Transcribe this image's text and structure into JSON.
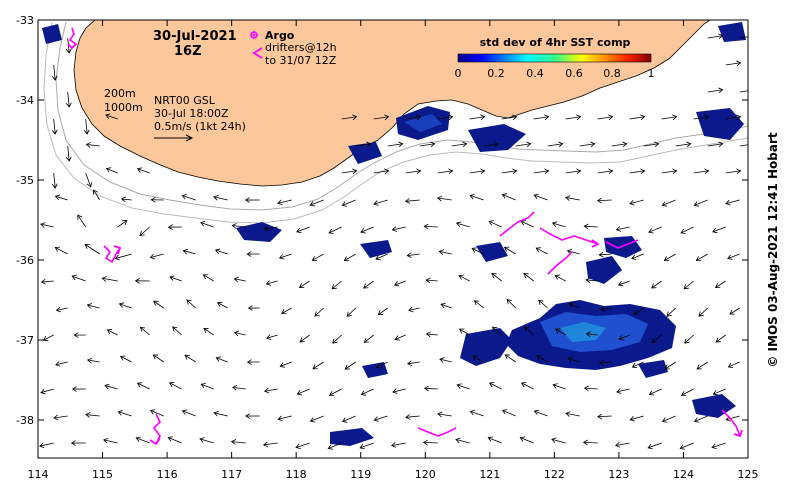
{
  "map": {
    "date": "30-Jul-2021",
    "time": "16Z",
    "legend": {
      "argo_label": "Argo",
      "drifters_line1": "drifters@12h",
      "drifters_line2": "to 31/07 12Z"
    },
    "depth": {
      "c1": "200m",
      "c2": "1000m"
    },
    "velocity": {
      "line1": "NRT00 GSL",
      "line2": "30-Jul 18:00Z",
      "line3": "0.5m/s (1kt 24h)"
    },
    "colorbar": {
      "title": "std dev of 4hr SST comp",
      "ticks": [
        "0",
        "0.2",
        "0.4",
        "0.6",
        "0.8",
        "1"
      ]
    },
    "x_ticks": [
      "114",
      "115",
      "116",
      "117",
      "118",
      "119",
      "120",
      "121",
      "122",
      "123",
      "124",
      "125"
    ],
    "y_ticks": [
      "-33",
      "-34",
      "-35",
      "-36",
      "-37",
      "-38"
    ],
    "credit": "© IMOS 03-Aug-2021 12:41 Hobart",
    "colors": {
      "land": "#fcc89b",
      "drifter": "#ff00ff",
      "patch_dark": "#0a1a8c",
      "patch_mid": "#1e50d0",
      "patch_light": "#21b2e6"
    }
  }
}
